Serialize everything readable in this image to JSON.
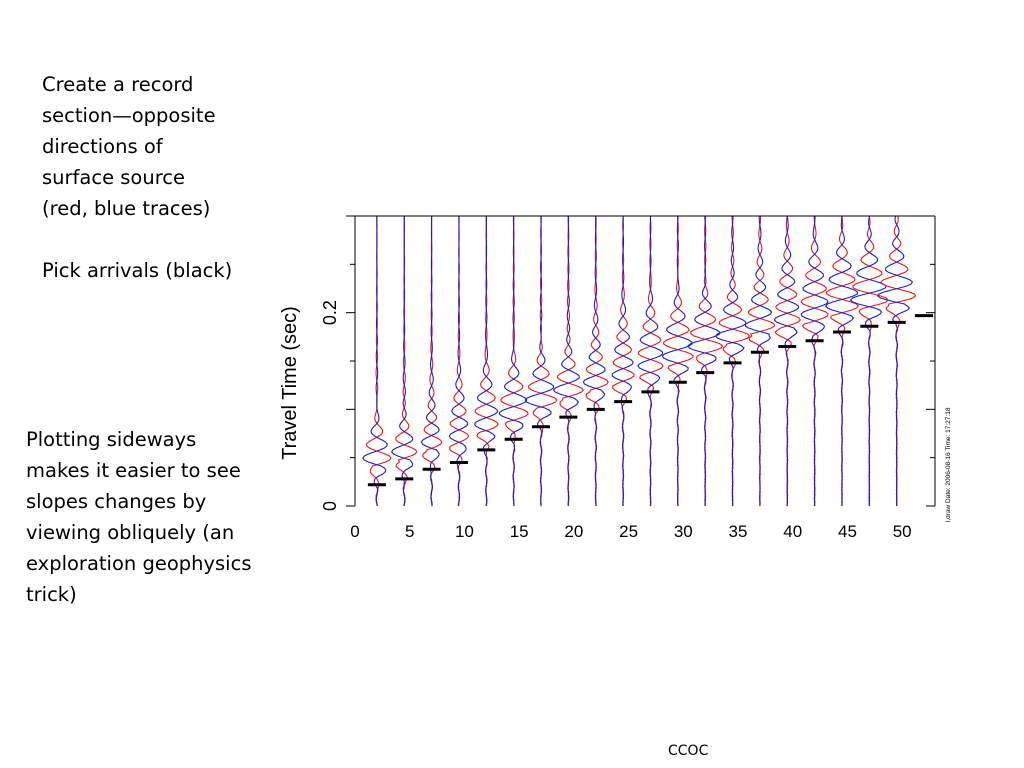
{
  "notes": {
    "top_lines": [
      "Create a record",
      "section—opposite",
      "directions of",
      "surface source",
      "(red, blue traces)"
    ],
    "pick": "Pick arrivals (black)",
    "side_lines": [
      "Plotting sideways",
      "makes it easier to see",
      "slopes changes by",
      "viewing obliquely (an",
      "exploration geophysics",
      "trick)"
    ]
  },
  "footer": "CCOC",
  "chart_data": {
    "type": "line",
    "title": "",
    "xlabel": "",
    "ylabel": "Travel Time (sec)",
    "xlim": [
      0,
      53
    ],
    "ylim": [
      0,
      0.3
    ],
    "x_ticks": [
      "0",
      "5",
      "10",
      "15",
      "20",
      "25",
      "30",
      "35",
      "40",
      "45",
      "50"
    ],
    "y_ticks": [
      "0",
      "0.2"
    ],
    "date_stamp": "I,draw Date: 2006-08-16 Time: 17:27:18",
    "series": [
      {
        "color": "#e8191b"
      },
      {
        "color": "#1c1cd0"
      },
      {
        "color": "#000000"
      }
    ],
    "picks": {
      "x": [
        2,
        4.5,
        7,
        9.5,
        12,
        14.5,
        17,
        19.5,
        22,
        24.5,
        27,
        29.5,
        32,
        34.5,
        37,
        39.5,
        42,
        44.5,
        47,
        49.5,
        52
      ],
      "t": [
        0.022,
        0.028,
        0.038,
        0.045,
        0.058,
        0.069,
        0.082,
        0.092,
        0.1,
        0.108,
        0.118,
        0.128,
        0.138,
        0.148,
        0.159,
        0.165,
        0.171,
        0.18,
        0.186,
        0.19,
        0.197
      ]
    }
  }
}
